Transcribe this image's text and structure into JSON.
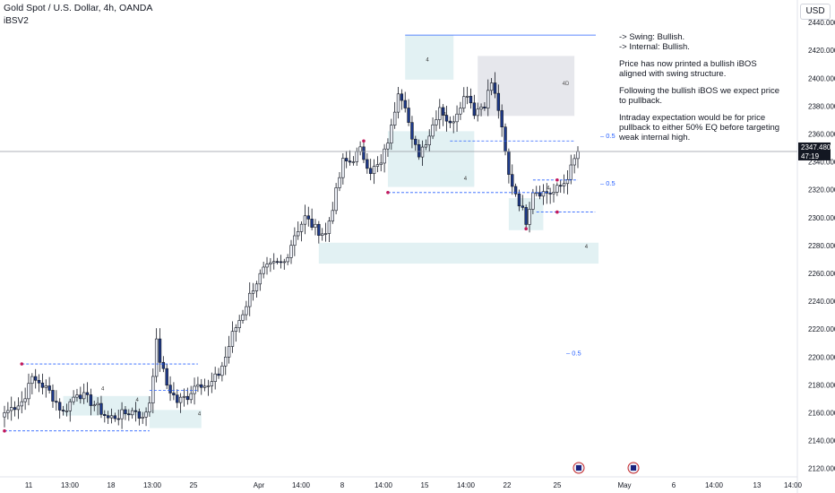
{
  "header": {
    "title": "Gold Spot / U.S. Dollar, 4h, OANDA",
    "indicator": "iBSV2",
    "currency": "USD"
  },
  "note": {
    "swing": "-> Swing:  Bullish.",
    "internal": "-> Internal:  Bullish.",
    "p1": "Price has now printed a bullish iBOS aligned with swing structure.",
    "p2": "Following the bullish iBOS we expect price to pullback.",
    "p3": "Intraday expectation would be for price pullback to either 50% EQ before targeting weak internal high."
  },
  "chart_data": {
    "type": "candlestick",
    "symbol": "XAUUSD",
    "timeframe": "4h",
    "y_ticks": [
      2440,
      2420,
      2400,
      2380,
      2360,
      2340,
      2320,
      2300,
      2280,
      2260,
      2240,
      2220,
      2200,
      2180,
      2160,
      2140,
      2120
    ],
    "y_tick_labels": [
      "2440.000",
      "2420.000",
      "2400.000",
      "2380.000",
      "2360.000",
      "2340.000",
      "2320.000",
      "2300.000",
      "2280.000",
      "2260.000",
      "2240.000",
      "2220.000",
      "2200.000",
      "2180.000",
      "2160.000",
      "2140.000",
      "2120.000"
    ],
    "ylim": [
      2114,
      2451
    ],
    "x_labels": [
      "11",
      "13:00",
      "18",
      "13:00",
      "25",
      "Apr",
      "14:00",
      "8",
      "14:00",
      "15",
      "14:00",
      "22",
      "25",
      "May",
      "6",
      "14:00",
      "13",
      "14:00"
    ],
    "bar_count": 211,
    "last_price": {
      "value": 2347.48,
      "label": "2347.480",
      "countdown": "47:19"
    },
    "colors": {
      "up": "#f0f3fa",
      "down": "#1e3a8a",
      "wick": "#131722",
      "zone": "#dff0f2",
      "box": "#e6e7ec",
      "level": "#2962ff",
      "pivot": "#c2185b"
    },
    "closes_anchor": [
      [
        0,
        2160
      ],
      [
        6,
        2170
      ],
      [
        7,
        2184
      ],
      [
        10,
        2182
      ],
      [
        13,
        2175
      ],
      [
        17,
        2160
      ],
      [
        21,
        2175
      ],
      [
        26,
        2166
      ],
      [
        30,
        2156
      ],
      [
        33,
        2158
      ],
      [
        38,
        2162
      ],
      [
        40,
        2155
      ],
      [
        42,
        2168
      ],
      [
        44,
        2210
      ],
      [
        45,
        2198
      ],
      [
        47,
        2180
      ],
      [
        50,
        2168
      ],
      [
        53,
        2172
      ],
      [
        56,
        2183
      ],
      [
        59,
        2178
      ],
      [
        62,
        2188
      ],
      [
        64,
        2200
      ],
      [
        66,
        2216
      ],
      [
        69,
        2232
      ],
      [
        72,
        2250
      ],
      [
        75,
        2262
      ],
      [
        78,
        2266
      ],
      [
        81,
        2268
      ],
      [
        84,
        2288
      ],
      [
        87,
        2300
      ],
      [
        90,
        2292
      ],
      [
        93,
        2288
      ],
      [
        96,
        2318
      ],
      [
        98,
        2340
      ],
      [
        100,
        2340
      ],
      [
        103,
        2348
      ],
      [
        106,
        2334
      ],
      [
        109,
        2338
      ],
      [
        112,
        2364
      ],
      [
        114,
        2392
      ],
      [
        116,
        2382
      ],
      [
        118,
        2354
      ],
      [
        120,
        2346
      ],
      [
        123,
        2360
      ],
      [
        126,
        2380
      ],
      [
        129,
        2366
      ],
      [
        132,
        2382
      ],
      [
        134,
        2390
      ],
      [
        136,
        2376
      ],
      [
        139,
        2382
      ],
      [
        141,
        2397
      ],
      [
        143,
        2378
      ],
      [
        146,
        2330
      ],
      [
        148,
        2318
      ],
      [
        151,
        2298
      ],
      [
        153,
        2320
      ],
      [
        156,
        2318
      ],
      [
        159,
        2318
      ],
      [
        162,
        2325
      ],
      [
        164,
        2335
      ],
      [
        166,
        2347.48
      ]
    ],
    "annotations": {
      "bos_label": "4",
      "eq_label": "0.5",
      "zone_count_label": "4",
      "box_label": "4D"
    }
  }
}
